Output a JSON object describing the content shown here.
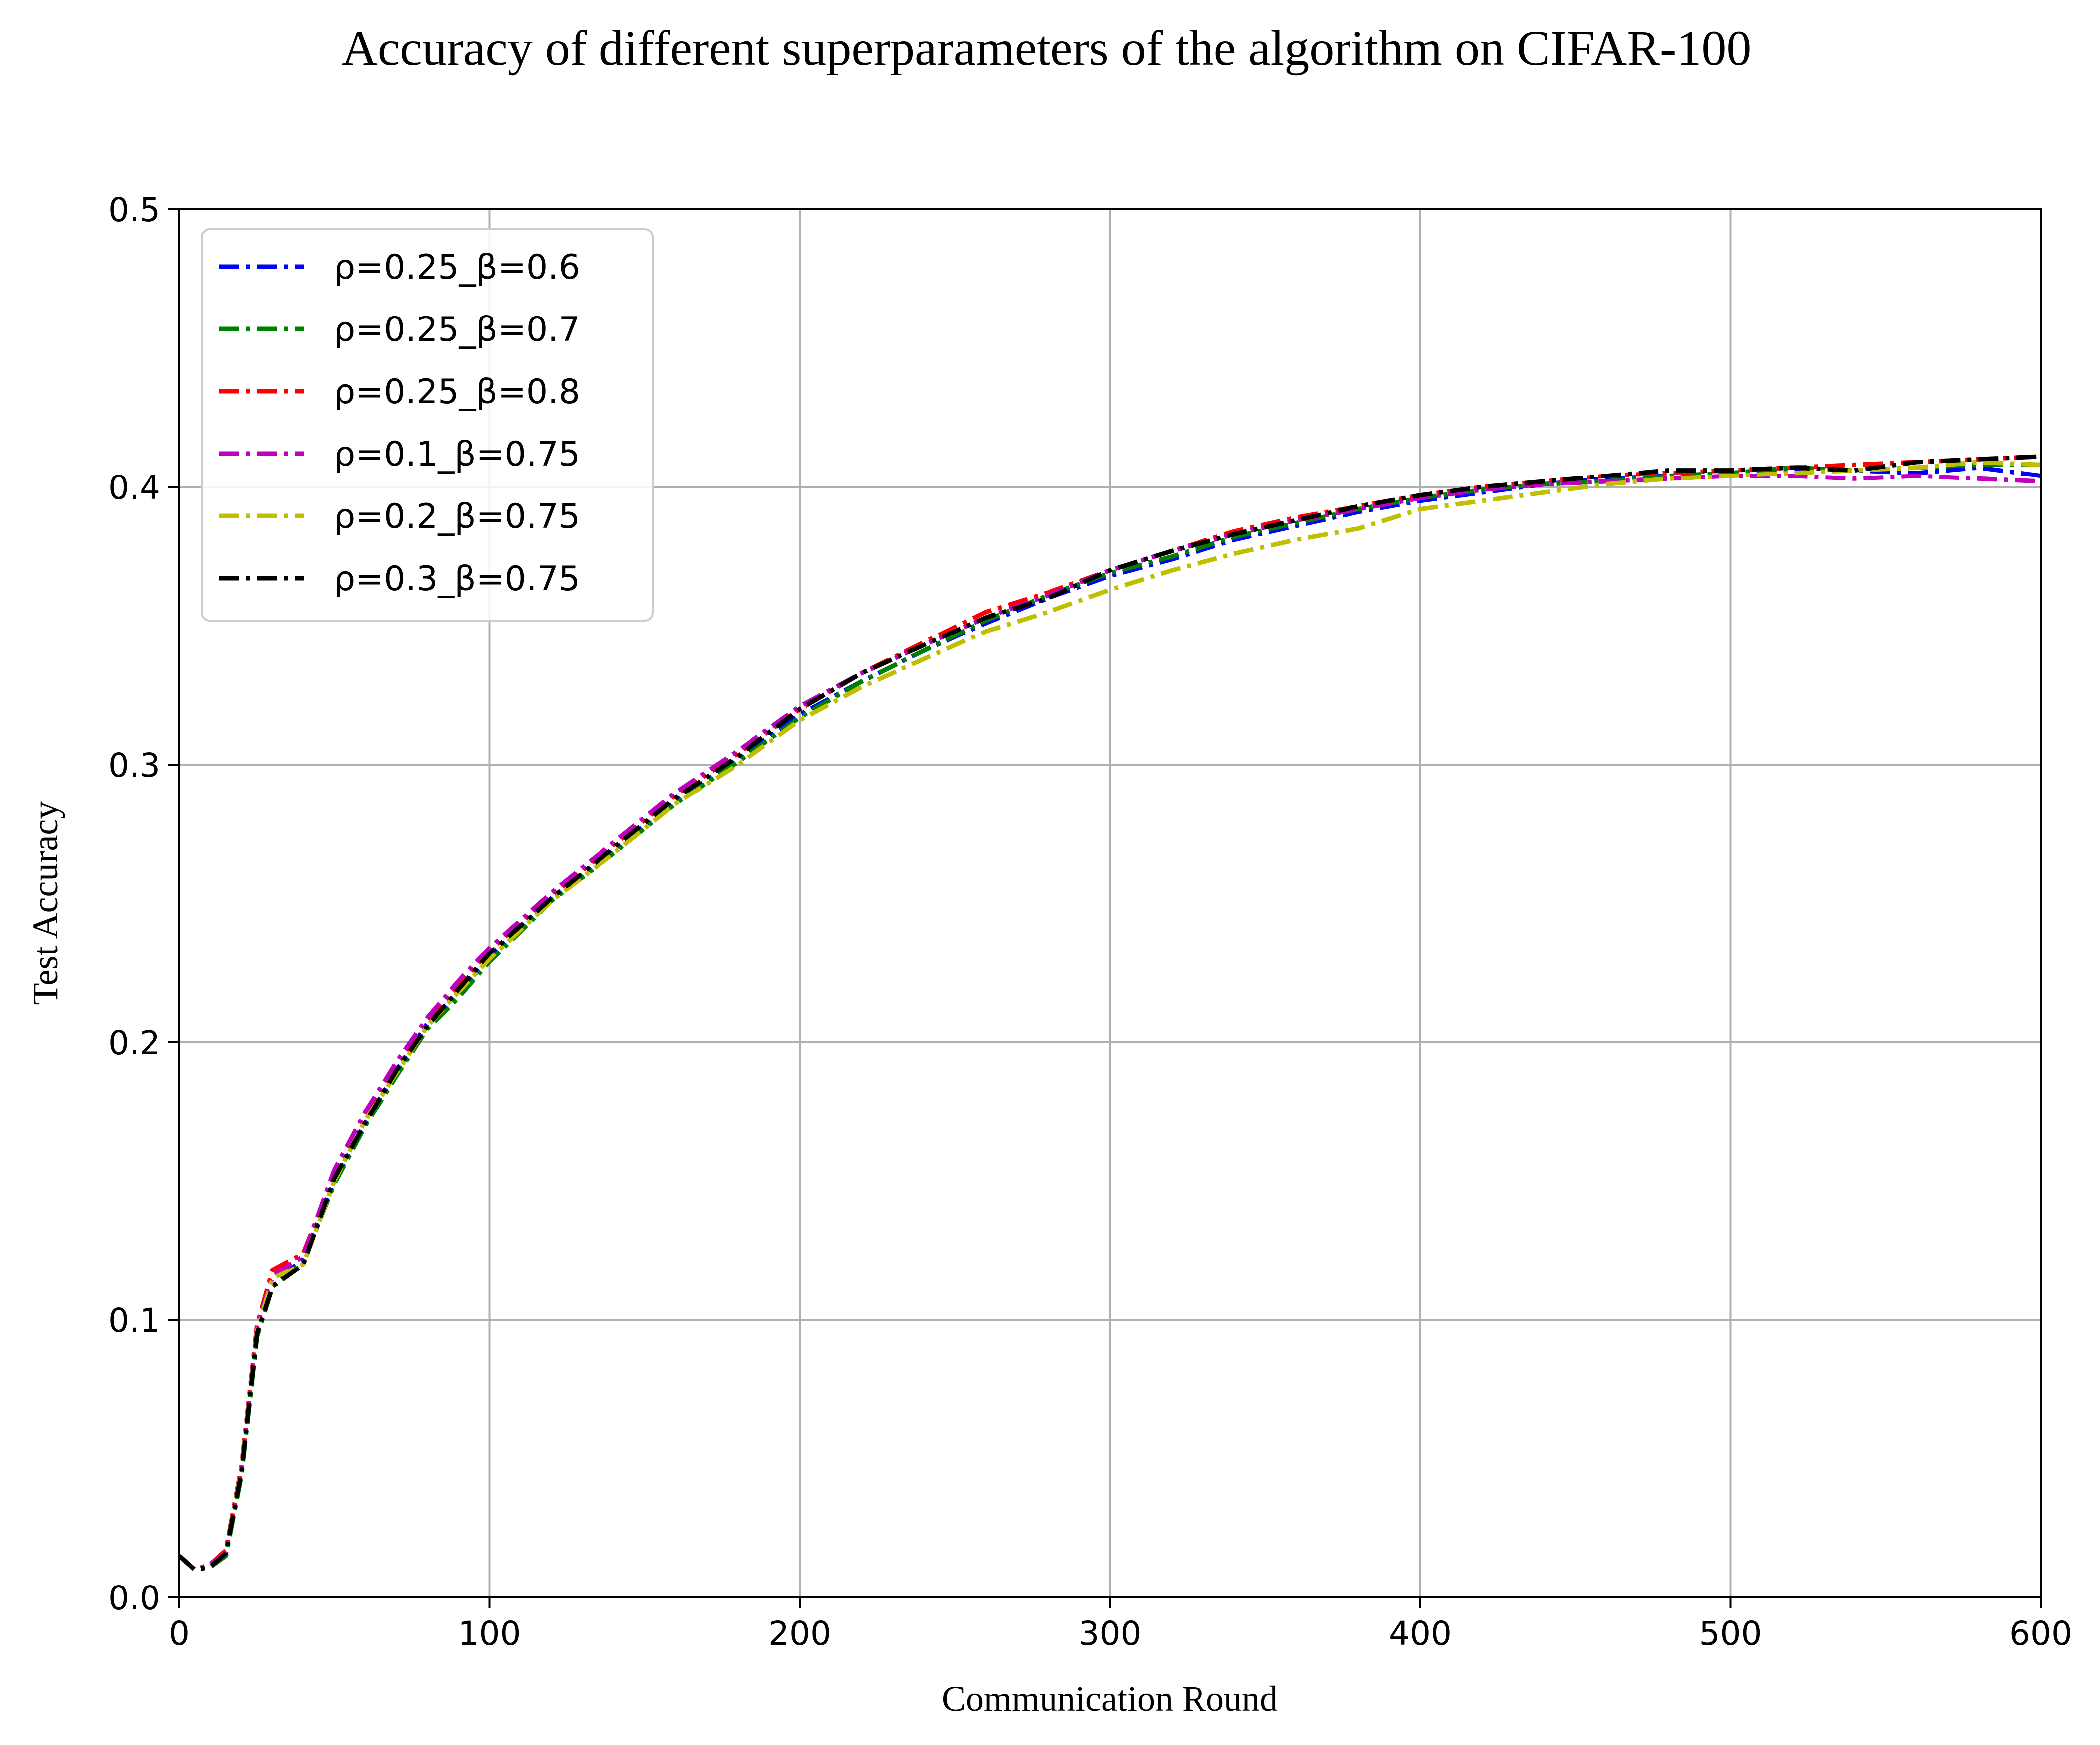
{
  "chart_data": {
    "type": "line",
    "title": "Accuracy of different superparameters of the algorithm on CIFAR-100",
    "xlabel": "Communication Round",
    "ylabel": "Test Accuracy",
    "xlim": [
      0,
      600
    ],
    "ylim": [
      0,
      0.5
    ],
    "xticks": [
      0,
      100,
      200,
      300,
      400,
      500,
      600
    ],
    "yticks": [
      0.0,
      0.1,
      0.2,
      0.3,
      0.4,
      0.5
    ],
    "xtick_labels": [
      "0",
      "100",
      "200",
      "300",
      "400",
      "500",
      "600"
    ],
    "ytick_labels": [
      "0.0",
      "0.1",
      "0.2",
      "0.3",
      "0.4",
      "0.5"
    ],
    "grid": true,
    "legend_position": "top-left",
    "line_style": "dashdot",
    "x": [
      0,
      5,
      10,
      15,
      20,
      25,
      30,
      40,
      50,
      60,
      70,
      80,
      90,
      100,
      120,
      140,
      160,
      180,
      200,
      220,
      240,
      260,
      280,
      300,
      320,
      340,
      360,
      380,
      400,
      420,
      440,
      460,
      480,
      500,
      520,
      540,
      560,
      580,
      600
    ],
    "series": [
      {
        "name": "ρ=0.25_β=0.6",
        "color": "#0000ff",
        "values": [
          0.015,
          0.01,
          0.011,
          0.016,
          0.045,
          0.095,
          0.113,
          0.122,
          0.15,
          0.171,
          0.19,
          0.207,
          0.218,
          0.231,
          0.252,
          0.269,
          0.287,
          0.302,
          0.318,
          0.33,
          0.341,
          0.351,
          0.36,
          0.368,
          0.374,
          0.381,
          0.386,
          0.391,
          0.395,
          0.398,
          0.401,
          0.403,
          0.404,
          0.405,
          0.406,
          0.406,
          0.405,
          0.407,
          0.404
        ]
      },
      {
        "name": "ρ=0.25_β=0.7",
        "color": "#008000",
        "values": [
          0.015,
          0.01,
          0.011,
          0.015,
          0.044,
          0.094,
          0.112,
          0.121,
          0.149,
          0.17,
          0.188,
          0.205,
          0.216,
          0.229,
          0.251,
          0.268,
          0.286,
          0.301,
          0.317,
          0.33,
          0.341,
          0.352,
          0.361,
          0.369,
          0.375,
          0.382,
          0.387,
          0.392,
          0.396,
          0.399,
          0.401,
          0.402,
          0.404,
          0.405,
          0.407,
          0.406,
          0.407,
          0.408,
          0.408
        ]
      },
      {
        "name": "ρ=0.25_β=0.8",
        "color": "#ff0000",
        "values": [
          0.015,
          0.01,
          0.012,
          0.017,
          0.047,
          0.098,
          0.118,
          0.124,
          0.152,
          0.174,
          0.192,
          0.208,
          0.22,
          0.233,
          0.253,
          0.271,
          0.289,
          0.304,
          0.32,
          0.333,
          0.344,
          0.355,
          0.362,
          0.37,
          0.377,
          0.384,
          0.389,
          0.393,
          0.397,
          0.4,
          0.402,
          0.404,
          0.405,
          0.406,
          0.407,
          0.408,
          0.409,
          0.41,
          0.411
        ]
      },
      {
        "name": "ρ=0.1_β=0.75",
        "color": "#bf00bf",
        "values": [
          0.015,
          0.01,
          0.012,
          0.016,
          0.046,
          0.097,
          0.116,
          0.123,
          0.154,
          0.175,
          0.193,
          0.209,
          0.222,
          0.234,
          0.254,
          0.272,
          0.29,
          0.305,
          0.321,
          0.333,
          0.343,
          0.353,
          0.361,
          0.37,
          0.377,
          0.383,
          0.388,
          0.392,
          0.396,
          0.399,
          0.401,
          0.402,
          0.403,
          0.404,
          0.404,
          0.403,
          0.404,
          0.403,
          0.402
        ]
      },
      {
        "name": "ρ=0.2_β=0.75",
        "color": "#bfbf00",
        "values": [
          0.015,
          0.01,
          0.011,
          0.016,
          0.046,
          0.096,
          0.115,
          0.12,
          0.15,
          0.172,
          0.189,
          0.206,
          0.218,
          0.23,
          0.251,
          0.268,
          0.286,
          0.3,
          0.316,
          0.328,
          0.338,
          0.348,
          0.355,
          0.363,
          0.37,
          0.376,
          0.381,
          0.385,
          0.392,
          0.395,
          0.398,
          0.401,
          0.403,
          0.404,
          0.405,
          0.406,
          0.407,
          0.409,
          0.408
        ]
      },
      {
        "name": "ρ=0.3_β=0.75",
        "color": "#000000",
        "values": [
          0.015,
          0.01,
          0.011,
          0.016,
          0.045,
          0.095,
          0.112,
          0.12,
          0.151,
          0.171,
          0.19,
          0.206,
          0.219,
          0.232,
          0.252,
          0.27,
          0.288,
          0.303,
          0.32,
          0.333,
          0.343,
          0.353,
          0.36,
          0.37,
          0.377,
          0.383,
          0.388,
          0.393,
          0.397,
          0.4,
          0.402,
          0.404,
          0.406,
          0.406,
          0.407,
          0.406,
          0.409,
          0.41,
          0.411
        ]
      }
    ]
  }
}
